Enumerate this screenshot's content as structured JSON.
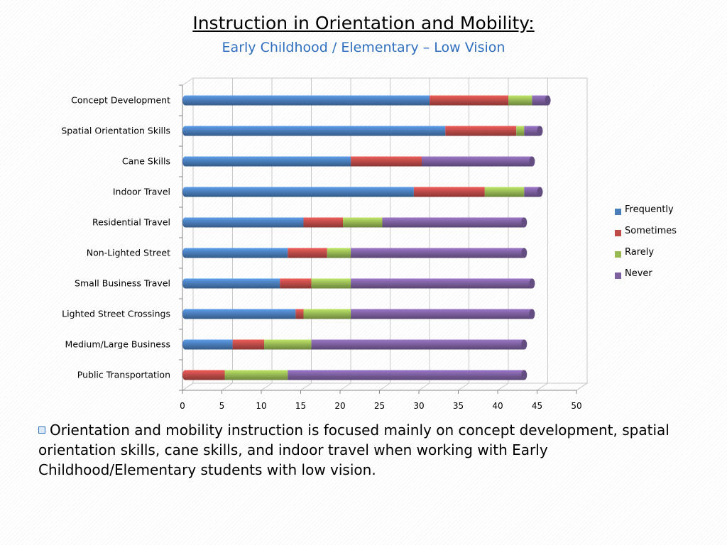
{
  "slide": {
    "title": "Instruction in Orientation and Mobility:",
    "subtitle": "Early Childhood / Elementary – Low Vision",
    "note": "Orientation and mobility instruction is focused mainly on concept development, spatial orientation skills, cane skills, and indoor travel when working with Early Childhood/Elementary students with low vision.",
    "bullet_icon": "hollow-square-bullet-icon"
  },
  "chart_data": {
    "type": "bar",
    "orientation": "horizontal",
    "stacked": true,
    "three_d": true,
    "title": "",
    "xlabel": "",
    "ylabel": "",
    "categories": [
      "Concept Development",
      "Spatial Orientation Skills",
      "Cane Skills",
      "Indoor Travel",
      "Residential Travel",
      "Non-Lighted Street ",
      "Small Business Travel",
      "Lighted Street Crossings",
      "Medium/Large Business",
      "Public Transportation"
    ],
    "series": [
      {
        "name": "Frequently",
        "color": "#4a7ebb",
        "values": [
          31,
          33,
          21,
          29,
          15,
          13,
          12,
          14,
          6,
          0
        ]
      },
      {
        "name": "Sometimes",
        "color": "#be4b48",
        "values": [
          10,
          9,
          9,
          9,
          5,
          5,
          4,
          1,
          4,
          5
        ]
      },
      {
        "name": "Rarely",
        "color": "#98b954",
        "values": [
          3,
          1,
          0,
          5,
          5,
          3,
          5,
          6,
          6,
          8
        ]
      },
      {
        "name": "Never",
        "color": "#7d60a0",
        "values": [
          2,
          2,
          14,
          2,
          18,
          22,
          23,
          23,
          27,
          30
        ]
      }
    ],
    "x_ticks": [
      0,
      5,
      10,
      15,
      20,
      25,
      30,
      35,
      40,
      45,
      50
    ],
    "xlim": [
      0,
      50
    ],
    "grid": true,
    "legend": "right"
  }
}
